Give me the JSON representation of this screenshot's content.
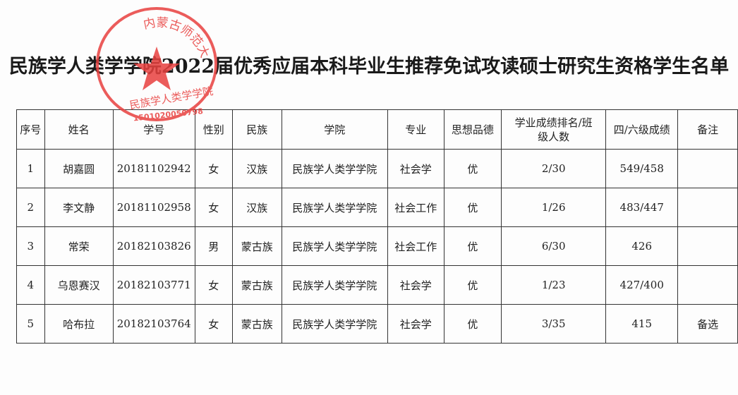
{
  "title": "民族学人类学学院2022届优秀应届本科毕业生推荐免试攻读硕士研究生资格学生名单",
  "stamp": {
    "top_text": "内蒙古师范大学",
    "bottom_text": "民族学人类学学院",
    "number": "1501020050798",
    "color": "#e8413f"
  },
  "table": {
    "headers": [
      "序号",
      "姓名",
      "学号",
      "性别",
      "民族",
      "学院",
      "专业",
      "思想品德",
      "学业成绩排名/班级人数",
      "四/六级成绩",
      "备注"
    ],
    "rows": [
      [
        "1",
        "胡嘉圆",
        "20181102942",
        "女",
        "汉族",
        "民族学人类学学院",
        "社会学",
        "优",
        "2/30",
        "549/458",
        ""
      ],
      [
        "2",
        "李文静",
        "20181102958",
        "女",
        "汉族",
        "民族学人类学学院",
        "社会工作",
        "优",
        "1/26",
        "483/447",
        ""
      ],
      [
        "3",
        "常荣",
        "20182103826",
        "男",
        "蒙古族",
        "民族学人类学学院",
        "社会工作",
        "优",
        "6/30",
        "426",
        ""
      ],
      [
        "4",
        "乌恩赛汉",
        "20182103771",
        "女",
        "蒙古族",
        "民族学人类学学院",
        "社会学",
        "优",
        "1/23",
        "427/400",
        ""
      ],
      [
        "5",
        "哈布拉",
        "20182103764",
        "女",
        "蒙古族",
        "民族学人类学学院",
        "社会学",
        "优",
        "3/35",
        "415",
        "备选"
      ]
    ]
  }
}
